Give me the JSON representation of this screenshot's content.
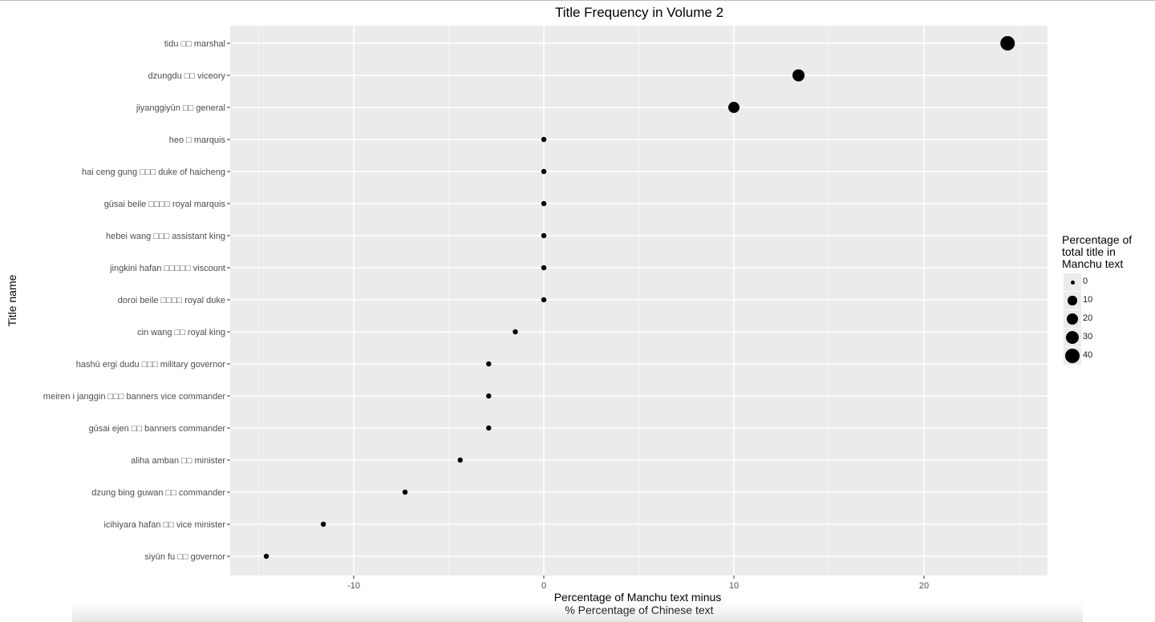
{
  "chart_data": {
    "type": "scatter",
    "title": "Title Frequency in Volume 2",
    "xlabel": "Percentage of Manchu text minus\n % Percentage of Chinese text",
    "ylabel": "Title name",
    "xlim": [
      -16.5,
      26.5
    ],
    "x_ticks": [
      -10,
      0,
      10,
      20
    ],
    "x_tick_labels": [
      "-10",
      "0",
      "10",
      "20"
    ],
    "grid": true,
    "legend_position": "right",
    "legend": {
      "title": "Percentage of\ntotal title in\nManchu text",
      "breaks": [
        0,
        10,
        20,
        30,
        40
      ],
      "labels": [
        "0",
        "10",
        "20",
        "30",
        "40"
      ]
    },
    "points": [
      {
        "label": "tidu □□ marshal",
        "x": 24.4,
        "size": 40
      },
      {
        "label": "dzungdu □□ viceory",
        "x": 13.4,
        "size": 24
      },
      {
        "label": "jiyanggiyūn □□ general",
        "x": 10.0,
        "size": 19
      },
      {
        "label": "heo □ marquis",
        "x": 0.0,
        "size": 0.5
      },
      {
        "label": "hai  ceng  gung □□□ duke of haicheng",
        "x": 0.0,
        "size": 0.5
      },
      {
        "label": "gūsai  beile □□□□ royal marquis",
        "x": 0.0,
        "size": 0.5
      },
      {
        "label": "hebei  wang □□□ assistant king",
        "x": 0.0,
        "size": 0.5
      },
      {
        "label": "jingkini  hafan □□□□□ viscount",
        "x": 0.0,
        "size": 0.5
      },
      {
        "label": "doroi  beile □□□□ royal duke",
        "x": 0.0,
        "size": 0.5
      },
      {
        "label": "cin  wang □□ royal king",
        "x": -1.5,
        "size": 0.5
      },
      {
        "label": "hashū  ergi  dudu □□□ military governor",
        "x": -2.9,
        "size": 0.5
      },
      {
        "label": "meiren  i  janggin □□□ banners vice commander",
        "x": -2.9,
        "size": 0.5
      },
      {
        "label": "gūsai  ejen □□ banners commander",
        "x": -2.9,
        "size": 0.5
      },
      {
        "label": "aliha  amban □□ minister",
        "x": -4.4,
        "size": 0.5
      },
      {
        "label": "dzung  bing guwan □□ commander",
        "x": -7.3,
        "size": 0.5
      },
      {
        "label": "icihiyara  hafan □□ vice minister",
        "x": -11.6,
        "size": 0.5
      },
      {
        "label": "siyūn  fu □□ governor",
        "x": -14.6,
        "size": 0.5
      }
    ]
  }
}
